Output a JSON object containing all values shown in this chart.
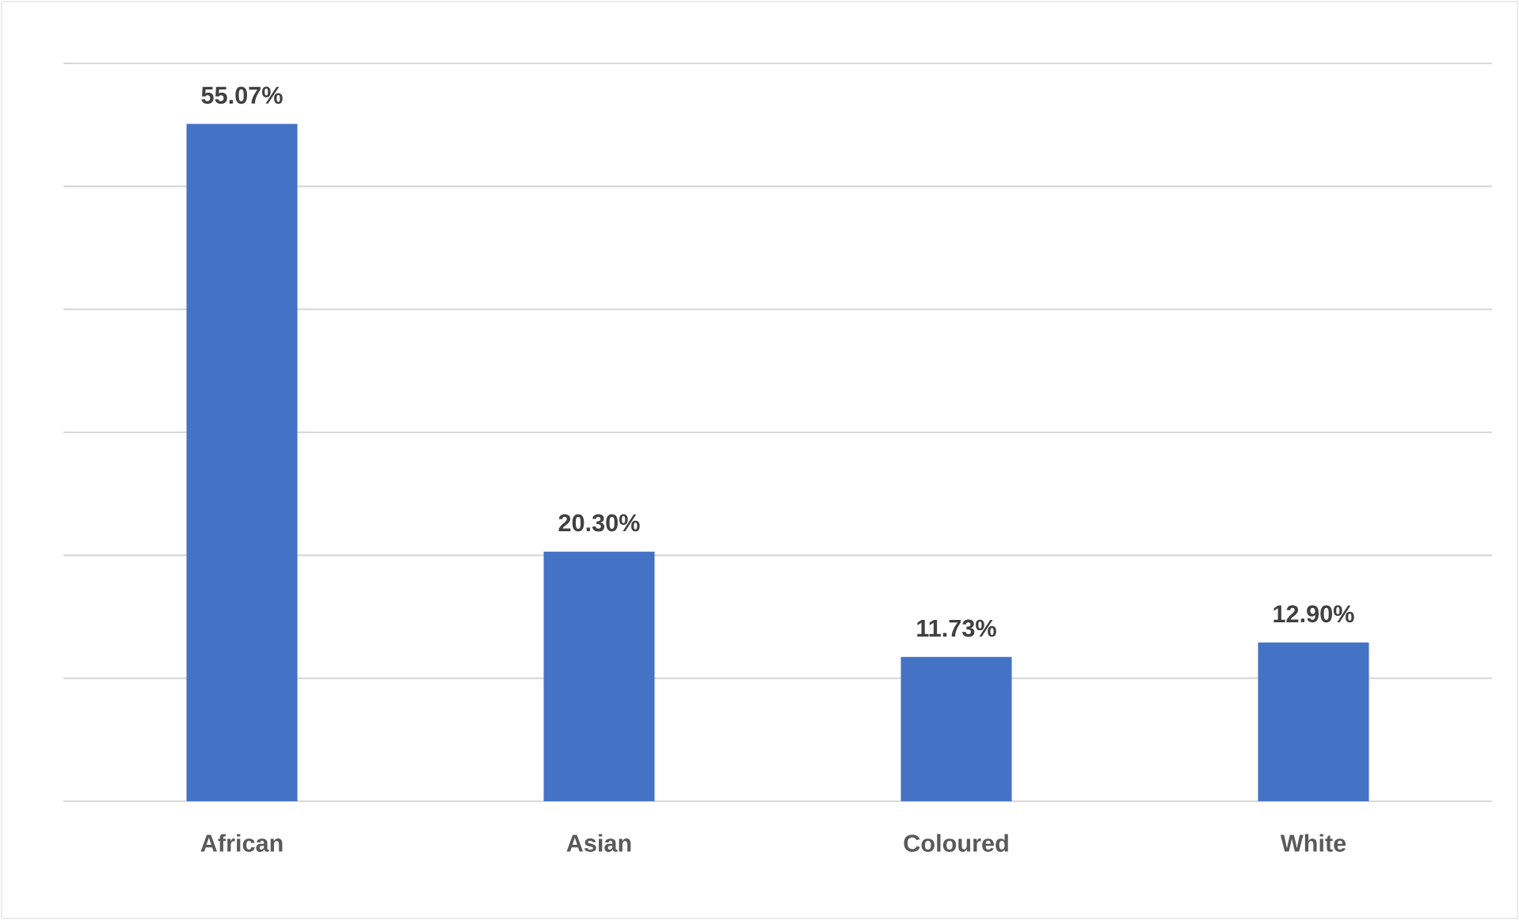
{
  "chart_data": {
    "type": "bar",
    "categories": [
      "African",
      "Asian",
      "Coloured",
      "White"
    ],
    "values": [
      55.07,
      20.3,
      11.73,
      12.9
    ],
    "value_labels": [
      "55.07%",
      "20.30%",
      "11.73%",
      "12.90%"
    ],
    "color": "#4472c4",
    "ylim": [
      0,
      60
    ],
    "yticks": [
      {
        "value": 0,
        "label": null
      },
      {
        "value": 10,
        "label": null
      },
      {
        "value": 20,
        "label": null
      },
      {
        "value": 30,
        "label": null
      },
      {
        "value": 40,
        "label": null
      },
      {
        "value": 50,
        "label": null
      },
      {
        "value": 60,
        "label": null
      }
    ],
    "tick_labels": "x",
    "grid": "y"
  }
}
